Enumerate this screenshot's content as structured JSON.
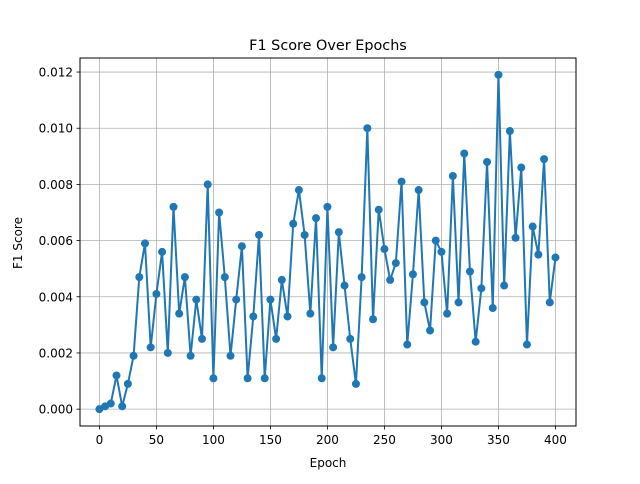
{
  "chart_data": {
    "type": "line",
    "title": "F1 Score Over Epochs",
    "xlabel": "Epoch",
    "ylabel": "F1 Score",
    "xlim": [
      -17,
      418
    ],
    "ylim": [
      -0.0006,
      0.0125
    ],
    "xticks": [
      0,
      50,
      100,
      150,
      200,
      250,
      300,
      350,
      400
    ],
    "xtick_labels": [
      "0",
      "50",
      "100",
      "150",
      "200",
      "250",
      "300",
      "350",
      "400"
    ],
    "yticks": [
      0.0,
      0.002,
      0.004,
      0.006,
      0.008,
      0.01,
      0.012
    ],
    "ytick_labels": [
      "0.000",
      "0.002",
      "0.004",
      "0.006",
      "0.008",
      "0.010",
      "0.012"
    ],
    "grid": true,
    "markers": true,
    "line_color": "#1f77b4",
    "series": [
      {
        "x": [
          0,
          5,
          10,
          15,
          20,
          25,
          30,
          35,
          40,
          45,
          50,
          55,
          60,
          65,
          70,
          75,
          80,
          85,
          90,
          95,
          100,
          105,
          110,
          115,
          120,
          125,
          130,
          135,
          140,
          145,
          150,
          155,
          160,
          165,
          170,
          175,
          180,
          185,
          190,
          195,
          200,
          205,
          210,
          215,
          220,
          225,
          230,
          235,
          240,
          245,
          250,
          255,
          260,
          265,
          270,
          275,
          280,
          285,
          290,
          295,
          300,
          305,
          310,
          315,
          320,
          325,
          330,
          335,
          340,
          345,
          350,
          355,
          360,
          365,
          370,
          375,
          380,
          385,
          390,
          395,
          400
        ],
        "values": [
          0.0,
          0.0001,
          0.0002,
          0.0012,
          0.0001,
          0.0009,
          0.0019,
          0.0047,
          0.0059,
          0.0022,
          0.0041,
          0.0056,
          0.002,
          0.0072,
          0.0034,
          0.0047,
          0.0019,
          0.0039,
          0.0025,
          0.008,
          0.0011,
          0.007,
          0.0047,
          0.0019,
          0.0039,
          0.0058,
          0.0011,
          0.0033,
          0.0062,
          0.0011,
          0.0039,
          0.0025,
          0.0046,
          0.0033,
          0.0066,
          0.0078,
          0.0062,
          0.0034,
          0.0068,
          0.0011,
          0.0072,
          0.0022,
          0.0063,
          0.0044,
          0.0025,
          0.0009,
          0.0047,
          0.01,
          0.0032,
          0.0071,
          0.0057,
          0.0046,
          0.0052,
          0.0081,
          0.0023,
          0.0048,
          0.0078,
          0.0038,
          0.0028,
          0.006,
          0.0056,
          0.0034,
          0.0083,
          0.0038,
          0.0091,
          0.0049,
          0.0024,
          0.0043,
          0.0088,
          0.0036,
          0.0119,
          0.0044,
          0.0099,
          0.0061,
          0.0086,
          0.0023,
          0.0065,
          0.0055,
          0.0089,
          0.0038,
          0.0054
        ]
      }
    ]
  }
}
